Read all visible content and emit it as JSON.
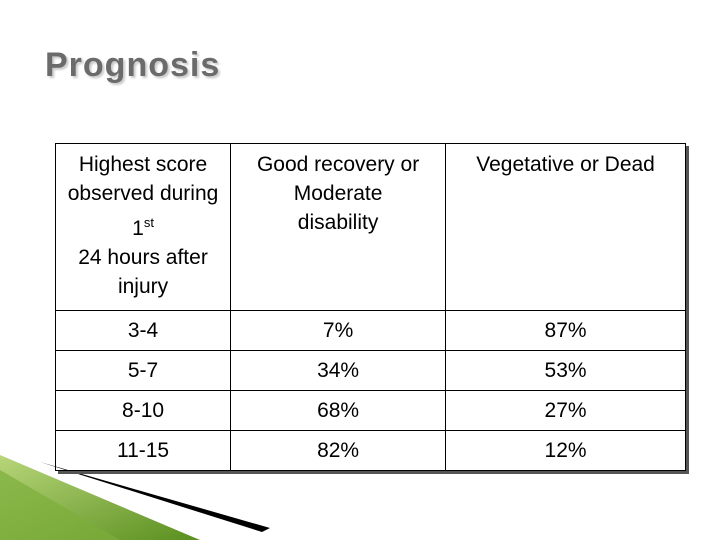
{
  "title": "Prognosis",
  "table": {
    "header": [
      {
        "main": "Highest score observed during 1",
        "sup": "st",
        "rest": "24 hours after injury"
      },
      "Good recovery or Moderate disability",
      "Vegetative or Dead"
    ],
    "rows": [
      [
        "3-4",
        "7%",
        "87%"
      ],
      [
        "5-7",
        "34%",
        "53%"
      ],
      [
        "8-10",
        "68%",
        "27%"
      ],
      [
        "11-15",
        "82%",
        "12%"
      ]
    ]
  }
}
